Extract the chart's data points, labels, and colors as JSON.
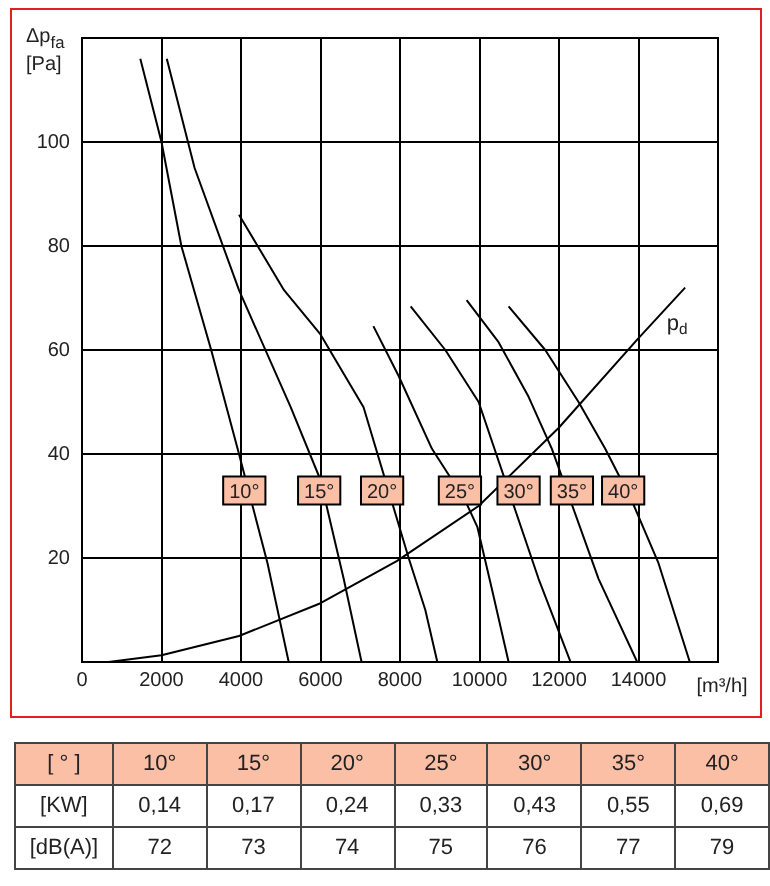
{
  "chart_data": [
    {
      "type": "line",
      "xlabel": "[m³/h]",
      "ylabel": "Δp$_{fa}$ [Pa]",
      "xlim": [
        0,
        16000
      ],
      "ylim": [
        0,
        120
      ],
      "xticks": [
        0,
        2000,
        4000,
        6000,
        8000,
        10000,
        12000,
        14000
      ],
      "yticks": [
        {
          "value": 0,
          "label": null
        },
        20,
        40,
        60,
        80,
        100
      ],
      "grid": true,
      "marker": "none",
      "line_style": "solid",
      "series": [
        {
          "color": "#000000",
          "x": [
            1467,
            2000,
            2500,
            3250,
            3950,
            4667,
            5200
          ],
          "values": [
            116,
            100,
            80,
            60,
            40,
            19,
            0
          ]
        },
        {
          "color": "#000000",
          "x": [
            2133,
            2833,
            3950,
            5250,
            6000,
            6583,
            7033
          ],
          "values": [
            116,
            95,
            71.5,
            49,
            35,
            16,
            0
          ]
        },
        {
          "color": "#000000",
          "x": [
            3950,
            5083,
            6000,
            7083,
            7900,
            8218,
            8637,
            8939
          ],
          "values": [
            86,
            71.5,
            63,
            49,
            null,
            20,
            10,
            0
          ]
        },
        {
          "color": "#000000",
          "x": [
            7330,
            7966,
            8804,
            9643,
            9945,
            10313,
            10732
          ],
          "values": [
            64.6,
            55,
            41,
            31,
            26,
            14,
            0
          ]
        },
        {
          "color": "#000000",
          "x": [
            8268,
            9140,
            9978,
            10732,
            11486,
            12291
          ],
          "values": [
            68.4,
            60,
            50,
            null,
            16,
            0
          ]
        },
        {
          "color": "#000000",
          "x": [
            9676,
            10480,
            11235,
            11821,
            12157,
            12995,
            13967
          ],
          "values": [
            69.6,
            61.5,
            51,
            41,
            null,
            16,
            0
          ]
        },
        {
          "color": "#000000",
          "x": [
            10732,
            11654,
            12492,
            13163,
            13833,
            14503,
            15291
          ],
          "values": [
            68.4,
            60,
            50,
            41,
            31,
            19,
            0
          ]
        },
        {
          "name": "p$_{d}$",
          "color": "#000000",
          "x": [
            667,
            2000,
            3950,
            6000,
            7917,
            9978,
            11989,
            13967,
            15173
          ],
          "values": [
            0,
            1.3,
            5,
            11.3,
            19.4,
            30,
            45,
            62,
            72
          ]
        }
      ],
      "annotations": [
        {
          "text": "10°",
          "x": 4083,
          "y": 33
        },
        {
          "text": "15°",
          "x": 5967,
          "y": 33
        },
        {
          "text": "20°",
          "x": 7550,
          "y": 33
        },
        {
          "text": "25°",
          "x": 9508,
          "y": 33
        },
        {
          "text": "30°",
          "x": 10983,
          "y": 33
        },
        {
          "text": "35°",
          "x": 12325,
          "y": 33
        },
        {
          "text": "40°",
          "x": 13614,
          "y": 33
        }
      ]
    },
    {
      "type": "heatmap",
      "xlabel": "[ ° ]",
      "categories": [
        "10°",
        "15°",
        "20°",
        "25°",
        "30°",
        "35°",
        "40°"
      ],
      "y_categories": [
        "[KW]",
        "[dB(A)]"
      ],
      "cells": [
        [
          0.14,
          0.17,
          0.24,
          0.33,
          0.43,
          0.55,
          0.69
        ],
        [
          72,
          73,
          74,
          75,
          76,
          77,
          79
        ]
      ],
      "cell_labels": [
        [
          "0,14",
          "0,17",
          "0,24",
          "0,33",
          "0,43",
          "0,55",
          "0,69"
        ],
        [
          "72",
          "73",
          "74",
          "75",
          "76",
          "77",
          "79"
        ]
      ]
    }
  ]
}
